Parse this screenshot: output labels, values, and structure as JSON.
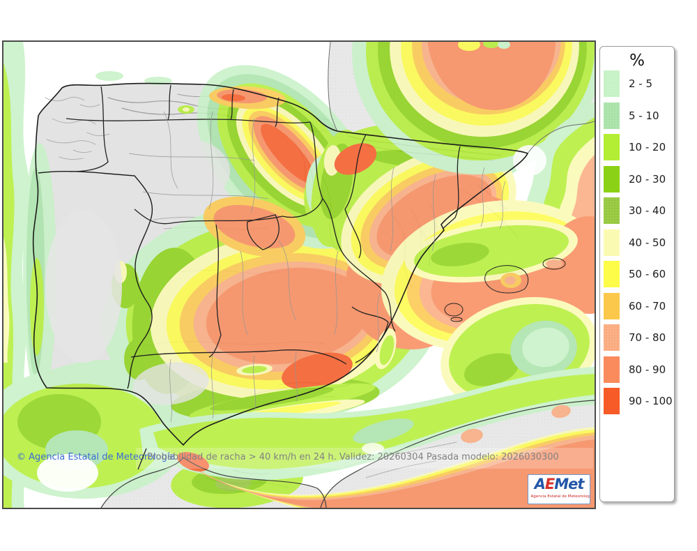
{
  "page": {
    "background": "#ffffff"
  },
  "map": {
    "attribution": "© Agencia Estatal de Meteorología",
    "product_label": "Probabilidad de racha > 40 km/h en 24 h. Validez: 20260304 Pasada modelo: 2026030300",
    "sea_color": "#ffffff",
    "land_color": "#e3e3e3",
    "foreign_land_color": "#e9e9e9",
    "frame_color": "#4a4a4a"
  },
  "legend": {
    "title": "%",
    "entries": [
      {
        "range": "2 - 5",
        "color": "#c6f2c6",
        "textured": true
      },
      {
        "range": "5 - 10",
        "color": "#a9e2a9",
        "textured": true
      },
      {
        "range": "10 - 20",
        "color": "#b3ee35",
        "textured": false
      },
      {
        "range": "20 - 30",
        "color": "#8bd216",
        "textured": false
      },
      {
        "range": "30 - 40",
        "color": "#96c83e",
        "textured": true
      },
      {
        "range": "40 - 50",
        "color": "#fbfab2",
        "textured": false
      },
      {
        "range": "50 - 60",
        "color": "#fdfc49",
        "textured": false
      },
      {
        "range": "60 - 70",
        "color": "#fcc84c",
        "textured": false
      },
      {
        "range": "70 - 80",
        "color": "#faab80",
        "textured": true
      },
      {
        "range": "80 - 90",
        "color": "#f98b5c",
        "textured": false
      },
      {
        "range": "90 - 100",
        "color": "#f75b27",
        "textured": false
      }
    ]
  },
  "logo": {
    "letters": [
      {
        "ch": "A",
        "color": "#2356a8"
      },
      {
        "ch": "E",
        "color": "#d8322a"
      },
      {
        "ch": "M",
        "color": "#2356a8"
      },
      {
        "ch": "e",
        "color": "#2356a8"
      },
      {
        "ch": "t",
        "color": "#2356a8"
      }
    ],
    "caption": "Agencia Estatal de Meteorología"
  }
}
